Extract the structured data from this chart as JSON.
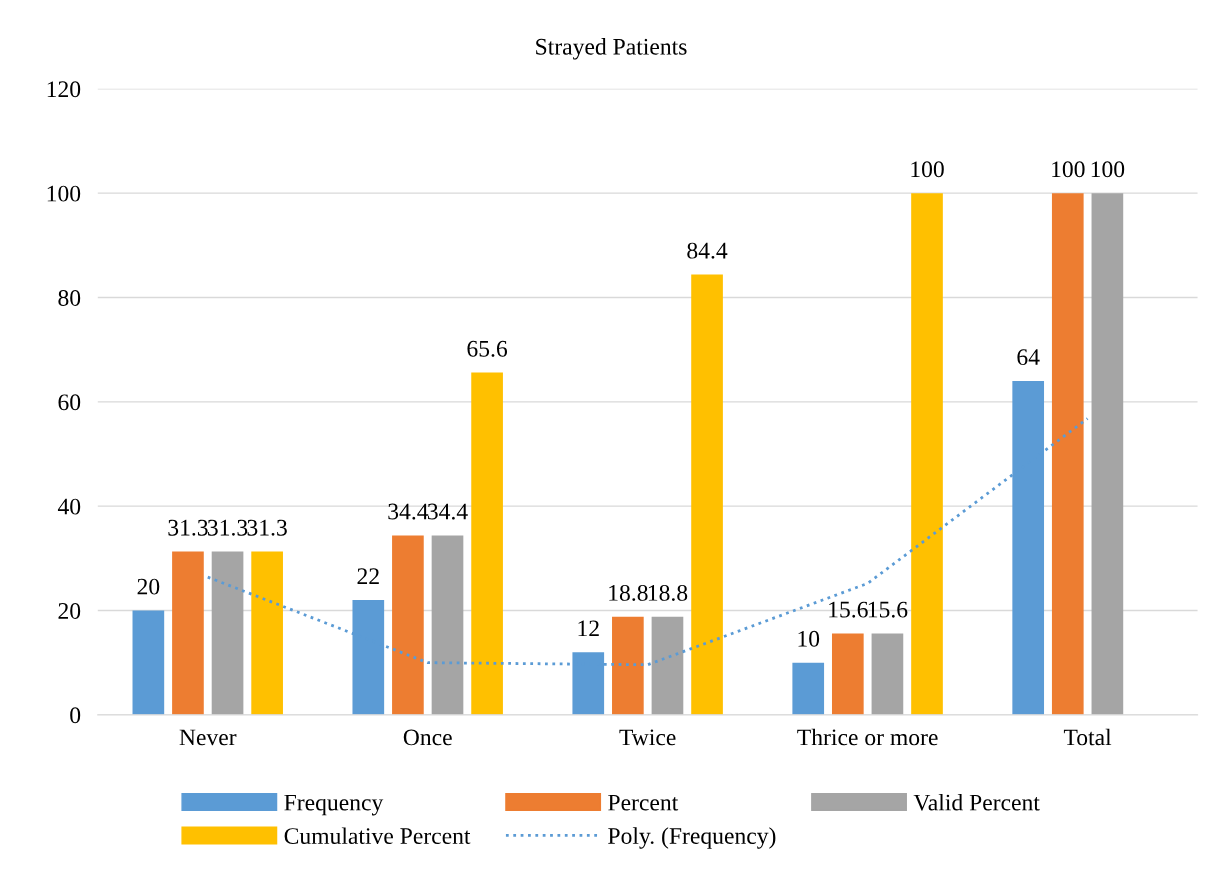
{
  "chart_data": {
    "type": "bar",
    "title": "Strayed Patients",
    "categories": [
      "Never",
      "Once",
      "Twice",
      "Thrice or more",
      "Total"
    ],
    "series": [
      {
        "name": "Frequency",
        "color": "#5b9bd5",
        "values": [
          20,
          22,
          12,
          10,
          64
        ]
      },
      {
        "name": "Percent",
        "color": "#ed7d31",
        "values": [
          31.3,
          34.4,
          18.8,
          15.6,
          100
        ]
      },
      {
        "name": "Valid Percent",
        "color": "#a5a5a5",
        "values": [
          31.3,
          34.4,
          18.8,
          15.6,
          100
        ]
      },
      {
        "name": "Cumulative Percent",
        "color": "#ffc000",
        "values": [
          31.3,
          65.6,
          84.4,
          100,
          null
        ]
      },
      {
        "name": "Poly. (Frequency)",
        "type": "line",
        "line_style": "dotted",
        "color": "#5b9bd5",
        "values": [
          26.4,
          10,
          9.6,
          25.2,
          56.8
        ],
        "value_labels": [
          null,
          null,
          null,
          null,
          null
        ]
      }
    ],
    "ylim": [
      0,
      120
    ],
    "yticks": [
      0,
      20,
      40,
      60,
      80,
      100,
      120
    ],
    "grid": "y",
    "legend": "bottom",
    "data_labels": true
  }
}
